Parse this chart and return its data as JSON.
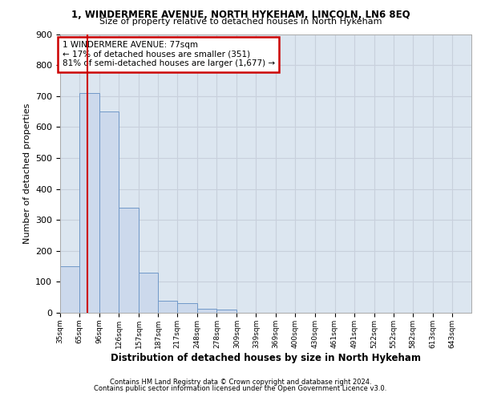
{
  "title1": "1, WINDERMERE AVENUE, NORTH HYKEHAM, LINCOLN, LN6 8EQ",
  "title2": "Size of property relative to detached houses in North Hykeham",
  "xlabel": "Distribution of detached houses by size in North Hykeham",
  "ylabel": "Number of detached properties",
  "footer1": "Contains HM Land Registry data © Crown copyright and database right 2024.",
  "footer2": "Contains public sector information licensed under the Open Government Licence v3.0.",
  "annotation_line1": "1 WINDERMERE AVENUE: 77sqm",
  "annotation_line2": "← 17% of detached houses are smaller (351)",
  "annotation_line3": "81% of semi-detached houses are larger (1,677) →",
  "bins": [
    35,
    65,
    96,
    126,
    157,
    187,
    217,
    248,
    278,
    309,
    339,
    369,
    400,
    430,
    461,
    491,
    522,
    552,
    582,
    613,
    643
  ],
  "counts": [
    150,
    710,
    650,
    340,
    130,
    40,
    30,
    12,
    10,
    0,
    0,
    0,
    0,
    0,
    0,
    0,
    0,
    0,
    0,
    0
  ],
  "bar_color": "#ccd9ec",
  "bar_edge_color": "#7098c8",
  "vline_color": "#cc0000",
  "vline_x": 77,
  "annotation_edge_color": "#cc0000",
  "grid_color": "#c8d0dc",
  "background_color": "#dce6f0",
  "ylim_max": 900,
  "yticks": [
    0,
    100,
    200,
    300,
    400,
    500,
    600,
    700,
    800,
    900
  ]
}
